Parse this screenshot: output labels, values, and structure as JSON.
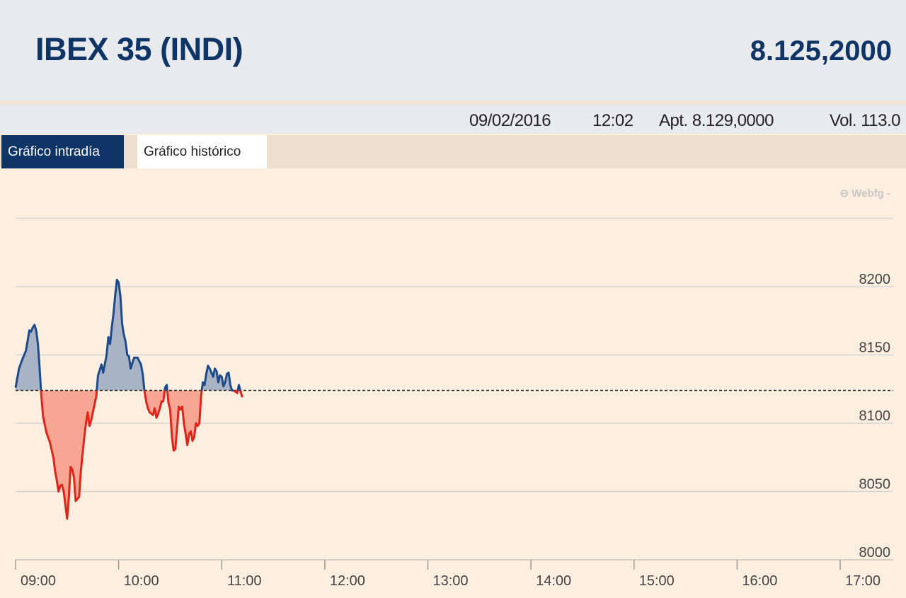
{
  "header": {
    "title": "IBEX 35 (INDI)",
    "price": "8.125,2000"
  },
  "infobar": {
    "date": "09/02/2016",
    "time": "12:02",
    "open": "Apt. 8.129,0000",
    "volume": "Vol. 113.0"
  },
  "tabs": [
    {
      "label": "Gráfico intradía",
      "active": true
    },
    {
      "label": "Gráfico histórico",
      "active": false
    }
  ],
  "watermark": "⊖ Webfg -",
  "colors": {
    "above": "#1f4a8a",
    "above_fill": "#a8b4c6",
    "below": "#e0241a",
    "below_fill": "#f7a693",
    "accent": "#0f3566"
  },
  "chart_data": {
    "type": "area",
    "title": "",
    "xlabel": "",
    "ylabel": "",
    "x_ticks": [
      "09:00",
      "10:00",
      "11:00",
      "12:00",
      "13:00",
      "14:00",
      "15:00",
      "16:00",
      "17:00"
    ],
    "y_ticks": [
      8000,
      8050,
      8100,
      8150,
      8200
    ],
    "ylim": [
      8000,
      8250
    ],
    "xlim": [
      "09:00",
      "17:00"
    ],
    "reference": 8124,
    "grid": true,
    "series": [
      {
        "points": [
          [
            "09:00",
            8126
          ],
          [
            "09:01",
            8133
          ],
          [
            "09:02",
            8140
          ],
          [
            "09:04",
            8147
          ],
          [
            "09:06",
            8153
          ],
          [
            "09:07",
            8160
          ],
          [
            "09:08",
            8168
          ],
          [
            "09:09",
            8167
          ],
          [
            "09:10",
            8170
          ],
          [
            "09:11",
            8172
          ],
          [
            "09:12",
            8168
          ],
          [
            "09:13",
            8158
          ],
          [
            "09:14",
            8140
          ],
          [
            "09:15",
            8120
          ],
          [
            "09:16",
            8105
          ],
          [
            "09:18",
            8093
          ],
          [
            "09:20",
            8086
          ],
          [
            "09:22",
            8075
          ],
          [
            "09:23",
            8065
          ],
          [
            "09:24",
            8058
          ],
          [
            "09:25",
            8050
          ],
          [
            "09:26",
            8054
          ],
          [
            "09:27",
            8055
          ],
          [
            "09:28",
            8050
          ],
          [
            "09:29",
            8040
          ],
          [
            "09:30",
            8030
          ],
          [
            "09:31",
            8045
          ],
          [
            "09:32",
            8068
          ],
          [
            "09:33",
            8066
          ],
          [
            "09:34",
            8060
          ],
          [
            "09:35",
            8043
          ],
          [
            "09:37",
            8046
          ],
          [
            "09:38",
            8065
          ],
          [
            "09:40",
            8090
          ],
          [
            "09:41",
            8100
          ],
          [
            "09:42",
            8108
          ],
          [
            "09:43",
            8098
          ],
          [
            "09:44",
            8102
          ],
          [
            "09:45",
            8108
          ],
          [
            "09:47",
            8120
          ],
          [
            "09:48",
            8135
          ],
          [
            "09:50",
            8143
          ],
          [
            "09:51",
            8137
          ],
          [
            "09:53",
            8150
          ],
          [
            "09:54",
            8163
          ],
          [
            "09:55",
            8158
          ],
          [
            "09:56",
            8170
          ],
          [
            "09:57",
            8180
          ],
          [
            "09:58",
            8194
          ],
          [
            "09:59",
            8205
          ],
          [
            "10:00",
            8203
          ],
          [
            "10:01",
            8193
          ],
          [
            "10:02",
            8173
          ],
          [
            "10:03",
            8165
          ],
          [
            "10:04",
            8160
          ],
          [
            "10:05",
            8150
          ],
          [
            "10:06",
            8149
          ],
          [
            "10:07",
            8140
          ],
          [
            "10:08",
            8144
          ],
          [
            "10:09",
            8148
          ],
          [
            "10:11",
            8148
          ],
          [
            "10:13",
            8143
          ],
          [
            "10:14",
            8136
          ],
          [
            "10:15",
            8124
          ],
          [
            "10:16",
            8116
          ],
          [
            "10:17",
            8111
          ],
          [
            "10:18",
            8108
          ],
          [
            "10:19",
            8107
          ],
          [
            "10:20",
            8106
          ],
          [
            "10:21",
            8111
          ],
          [
            "10:22",
            8104
          ],
          [
            "10:23",
            8107
          ],
          [
            "10:24",
            8111
          ],
          [
            "10:25",
            8116
          ],
          [
            "10:26",
            8116
          ],
          [
            "10:27",
            8126
          ],
          [
            "10:28",
            8128
          ],
          [
            "10:29",
            8115
          ],
          [
            "10:30",
            8110
          ],
          [
            "10:31",
            8090
          ],
          [
            "10:32",
            8080
          ],
          [
            "10:33",
            8081
          ],
          [
            "10:34",
            8096
          ],
          [
            "10:35",
            8112
          ],
          [
            "10:36",
            8110
          ],
          [
            "10:37",
            8112
          ],
          [
            "10:38",
            8100
          ],
          [
            "10:39",
            8092
          ],
          [
            "10:40",
            8084
          ],
          [
            "10:41",
            8092
          ],
          [
            "10:42",
            8094
          ],
          [
            "10:43",
            8087
          ],
          [
            "10:44",
            8090
          ],
          [
            "10:45",
            8100
          ],
          [
            "10:46",
            8098
          ],
          [
            "10:47",
            8100
          ],
          [
            "10:48",
            8120
          ],
          [
            "10:49",
            8130
          ],
          [
            "10:50",
            8128
          ],
          [
            "10:51",
            8136
          ],
          [
            "10:52",
            8142
          ],
          [
            "10:53",
            8140
          ],
          [
            "10:55",
            8134
          ],
          [
            "10:56",
            8140
          ],
          [
            "10:57",
            8138
          ],
          [
            "10:58",
            8130
          ],
          [
            "10:59",
            8135
          ],
          [
            "11:00",
            8134
          ],
          [
            "11:01",
            8127
          ],
          [
            "11:02",
            8130
          ],
          [
            "11:03",
            8136
          ],
          [
            "11:04",
            8137
          ],
          [
            "11:05",
            8128
          ],
          [
            "11:06",
            8124
          ],
          [
            "11:07",
            8124
          ],
          [
            "11:08",
            8123
          ],
          [
            "11:09",
            8122
          ],
          [
            "11:10",
            8128
          ],
          [
            "11:11",
            8123
          ],
          [
            "11:12",
            8119
          ]
        ]
      }
    ]
  }
}
